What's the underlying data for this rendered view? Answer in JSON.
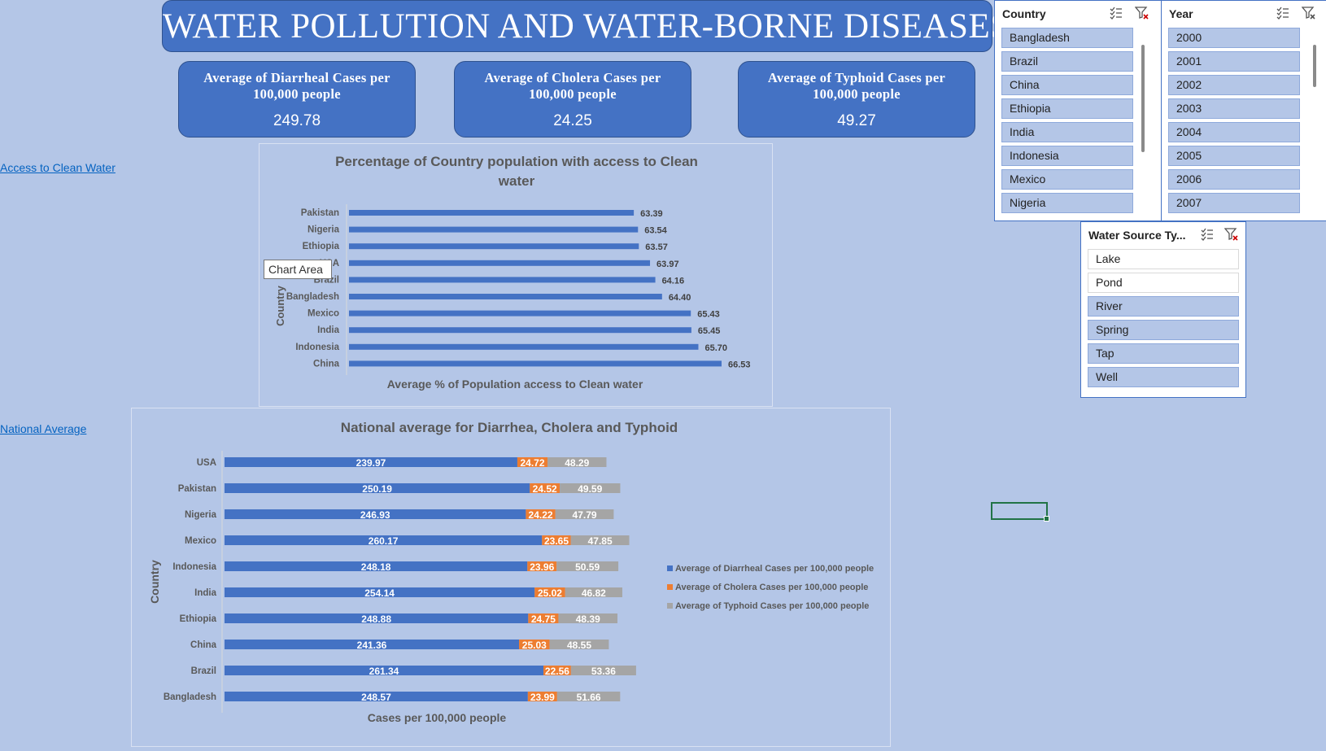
{
  "title": "WATER POLLUTION AND WATER-BORNE DISEASES",
  "kpis": [
    {
      "label": "Average of Diarrheal Cases per 100,000 people",
      "value": "249.78"
    },
    {
      "label": "Average of Cholera Cases per 100,000 people",
      "value": "24.25"
    },
    {
      "label": "Average of Typhoid Cases per 100,000 people",
      "value": "49.27"
    }
  ],
  "links": {
    "clean_water": "Access to Clean Water",
    "national_average": "National Average"
  },
  "tooltip": "Chart Area",
  "slicers": {
    "country": {
      "title": "Country",
      "items": [
        "Bangladesh",
        "Brazil",
        "China",
        "Ethiopia",
        "India",
        "Indonesia",
        "Mexico",
        "Nigeria"
      ]
    },
    "year": {
      "title": "Year",
      "items": [
        "2000",
        "2001",
        "2002",
        "2003",
        "2004",
        "2005",
        "2006",
        "2007"
      ]
    },
    "water_source": {
      "title": "Water Source Ty...",
      "items": [
        {
          "label": "Lake",
          "selected": false
        },
        {
          "label": "Pond",
          "selected": false
        },
        {
          "label": "River",
          "selected": true
        },
        {
          "label": "Spring",
          "selected": true
        },
        {
          "label": "Tap",
          "selected": true
        },
        {
          "label": "Well",
          "selected": true
        }
      ]
    },
    "icons": [
      "multi-select-icon",
      "clear-filter-icon"
    ]
  },
  "colors": {
    "background": "#b4c6e7",
    "accent": "#4472c4",
    "cholera": "#ed7d31",
    "typhoid": "#a5a5a5"
  },
  "chart_data": [
    {
      "type": "bar",
      "orientation": "horizontal",
      "title": "Percentage of Country population with access to Clean water",
      "xlabel": "Average %  of Population access to Clean water",
      "ylabel": "Country",
      "categories": [
        "Pakistan",
        "Nigeria",
        "Ethiopia",
        "USA",
        "Brazil",
        "Bangladesh",
        "Mexico",
        "India",
        "Indonesia",
        "China"
      ],
      "values": [
        63.39,
        63.54,
        63.57,
        63.97,
        64.16,
        64.4,
        65.43,
        65.45,
        65.7,
        66.53
      ],
      "value_labels": [
        "63.39",
        "63.54",
        "63.57",
        "63.97",
        "64.16",
        "64.40",
        "65.43",
        "65.45",
        "65.70",
        "66.53"
      ],
      "grid": false,
      "legend": "none"
    },
    {
      "type": "bar",
      "orientation": "horizontal",
      "stacked": true,
      "title": "National average for Diarrhea, Cholera and Typhoid",
      "xlabel": "Cases per 100,000 people",
      "ylabel": "Country",
      "categories": [
        "USA",
        "Pakistan",
        "Nigeria",
        "Mexico",
        "Indonesia",
        "India",
        "Ethiopia",
        "China",
        "Brazil",
        "Bangladesh"
      ],
      "series": [
        {
          "name": "Average of Diarrheal Cases per 100,000 people",
          "values": [
            239.97,
            250.19,
            246.93,
            260.17,
            248.18,
            254.14,
            248.88,
            241.36,
            261.34,
            248.57
          ],
          "labels": [
            "239.97",
            "250.19",
            "246.93",
            "260.17",
            "248.18",
            "254.14",
            "248.88",
            "241.36",
            "261.34",
            "248.57"
          ]
        },
        {
          "name": "Average of Cholera Cases per 100,000 people",
          "values": [
            24.72,
            24.52,
            24.22,
            23.65,
            23.96,
            25.02,
            24.75,
            25.03,
            22.56,
            23.99
          ],
          "labels": [
            "24.72",
            "24.52",
            "24.22",
            "23.65",
            "23.96",
            "25.02",
            "24.75",
            "25.03",
            "22.56",
            "23.99"
          ]
        },
        {
          "name": "Average of Typhoid Cases per 100,000 people",
          "values": [
            48.29,
            49.59,
            47.79,
            47.85,
            50.59,
            46.82,
            48.39,
            48.55,
            53.36,
            51.66
          ],
          "labels": [
            "48.29",
            "49.59",
            "47.79",
            "47.85",
            "50.59",
            "46.82",
            "48.39",
            "48.55",
            "53.36",
            "51.66"
          ]
        }
      ],
      "grid": false,
      "legend": "right"
    }
  ]
}
